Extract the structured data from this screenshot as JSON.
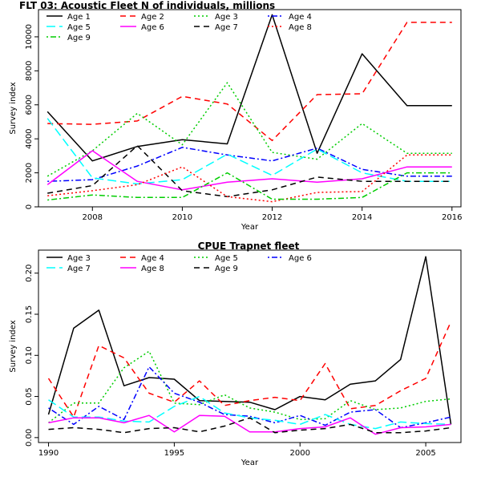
{
  "chart_data": [
    {
      "type": "line",
      "title": "FLT 03: Acoustic Fleet   N of individuals, millions",
      "xlabel": "Year",
      "ylabel": "Survey index",
      "xlim": [
        2006.8,
        2016.2
      ],
      "ylim": [
        0,
        11600
      ],
      "xticks": [
        2008,
        2010,
        2012,
        2014,
        2016
      ],
      "yticks": [
        0,
        2000,
        4000,
        6000,
        8000,
        10000
      ],
      "x": [
        2007,
        2008,
        2009,
        2010,
        2011,
        2012,
        2013,
        2014,
        2015,
        2016
      ],
      "legend_position": "top-left",
      "series": [
        {
          "name": "Age 1",
          "color": "#000000",
          "dash": "solid",
          "values": [
            5600,
            2700,
            3550,
            3950,
            3700,
            11300,
            3150,
            9000,
            5950,
            5950
          ]
        },
        {
          "name": "Age 2",
          "color": "#FF0000",
          "dash": "dashed",
          "values": [
            4900,
            4850,
            5050,
            6500,
            6050,
            3900,
            6600,
            6650,
            10850,
            10850
          ]
        },
        {
          "name": "Age 3",
          "color": "#00CD00",
          "dash": "dotted",
          "values": [
            1800,
            3300,
            5500,
            3650,
            7300,
            3200,
            2800,
            4900,
            3150,
            3150
          ]
        },
        {
          "name": "Age 4",
          "color": "#0000FF",
          "dash": "dotdash",
          "values": [
            1500,
            1600,
            2400,
            3500,
            3050,
            2700,
            3450,
            2200,
            1800,
            1800
          ]
        },
        {
          "name": "Age 5",
          "color": "#00FFFF",
          "dash": "longdash",
          "values": [
            5200,
            1700,
            1350,
            1600,
            3100,
            1850,
            3400,
            2000,
            1500,
            1500
          ]
        },
        {
          "name": "Age 6",
          "color": "#FF00FF",
          "dash": "solid",
          "values": [
            1300,
            3300,
            1500,
            1000,
            1450,
            1650,
            1450,
            1650,
            2350,
            2350
          ]
        },
        {
          "name": "Age 7",
          "color": "#000000",
          "dash": "dashed",
          "values": [
            800,
            1250,
            3600,
            950,
            600,
            1000,
            1750,
            1500,
            1500,
            1500
          ]
        },
        {
          "name": "Age 8",
          "color": "#FF0000",
          "dash": "dotted",
          "values": [
            650,
            950,
            1300,
            2350,
            600,
            300,
            850,
            900,
            3050,
            3050
          ]
        },
        {
          "name": "Age 9",
          "color": "#00CD00",
          "dash": "dotdash",
          "values": [
            400,
            700,
            550,
            550,
            2000,
            450,
            450,
            550,
            2000,
            2000
          ]
        }
      ]
    },
    {
      "type": "line",
      "title": "CPUE Trapnet fleet",
      "xlabel": "Year",
      "ylabel": "Survey index",
      "xlim": [
        1989.6,
        2006.4
      ],
      "ylim": [
        -0.006,
        0.228
      ],
      "xticks": [
        1990,
        1995,
        2000,
        2005
      ],
      "yticks": [
        0.0,
        0.05,
        0.1,
        0.15,
        0.2
      ],
      "ytick_labels": [
        "0.00",
        "0.05",
        "0.10",
        "0.15",
        "0.20"
      ],
      "x": [
        1990,
        1991,
        1992,
        1993,
        1994,
        1995,
        1996,
        1997,
        1998,
        1999,
        2000,
        2001,
        2002,
        2003,
        2004,
        2005,
        2006
      ],
      "legend_position": "top-left",
      "series": [
        {
          "name": "Age 3",
          "color": "#000000",
          "dash": "solid",
          "values": [
            0.028,
            0.133,
            0.155,
            0.063,
            0.073,
            0.071,
            0.045,
            0.044,
            0.043,
            0.034,
            0.05,
            0.046,
            0.065,
            0.069,
            0.095,
            0.22,
            0.016
          ]
        },
        {
          "name": "Age 4",
          "color": "#FF0000",
          "dash": "dashed",
          "values": [
            0.072,
            0.025,
            0.112,
            0.097,
            0.054,
            0.043,
            0.069,
            0.039,
            0.045,
            0.049,
            0.045,
            0.09,
            0.035,
            0.039,
            0.057,
            0.072,
            0.141
          ]
        },
        {
          "name": "Age 5",
          "color": "#00CD00",
          "dash": "dotted",
          "values": [
            0.018,
            0.042,
            0.042,
            0.085,
            0.105,
            0.042,
            0.04,
            0.052,
            0.036,
            0.031,
            0.022,
            0.023,
            0.045,
            0.034,
            0.036,
            0.044,
            0.047
          ]
        },
        {
          "name": "Age 6",
          "color": "#0000FF",
          "dash": "dotdash",
          "values": [
            0.036,
            0.016,
            0.038,
            0.022,
            0.086,
            0.054,
            0.043,
            0.028,
            0.026,
            0.018,
            0.027,
            0.015,
            0.031,
            0.034,
            0.012,
            0.018,
            0.025
          ]
        },
        {
          "name": "Age 7",
          "color": "#00FFFF",
          "dash": "longdash",
          "values": [
            0.046,
            0.025,
            0.025,
            0.02,
            0.019,
            0.038,
            0.05,
            0.03,
            0.024,
            0.021,
            0.016,
            0.028,
            0.016,
            0.011,
            0.019,
            0.017,
            0.016
          ]
        },
        {
          "name": "Age 8",
          "color": "#FF00FF",
          "dash": "solid",
          "values": [
            0.018,
            0.024,
            0.024,
            0.018,
            0.027,
            0.007,
            0.027,
            0.026,
            0.007,
            0.007,
            0.011,
            0.013,
            0.024,
            0.004,
            0.012,
            0.013,
            0.016
          ]
        },
        {
          "name": "Age 9",
          "color": "#000000",
          "dash": "dashed",
          "values": [
            0.01,
            0.012,
            0.01,
            0.006,
            0.011,
            0.012,
            0.007,
            0.014,
            0.024,
            0.006,
            0.009,
            0.011,
            0.016,
            0.006,
            0.006,
            0.008,
            0.012
          ]
        }
      ]
    }
  ]
}
